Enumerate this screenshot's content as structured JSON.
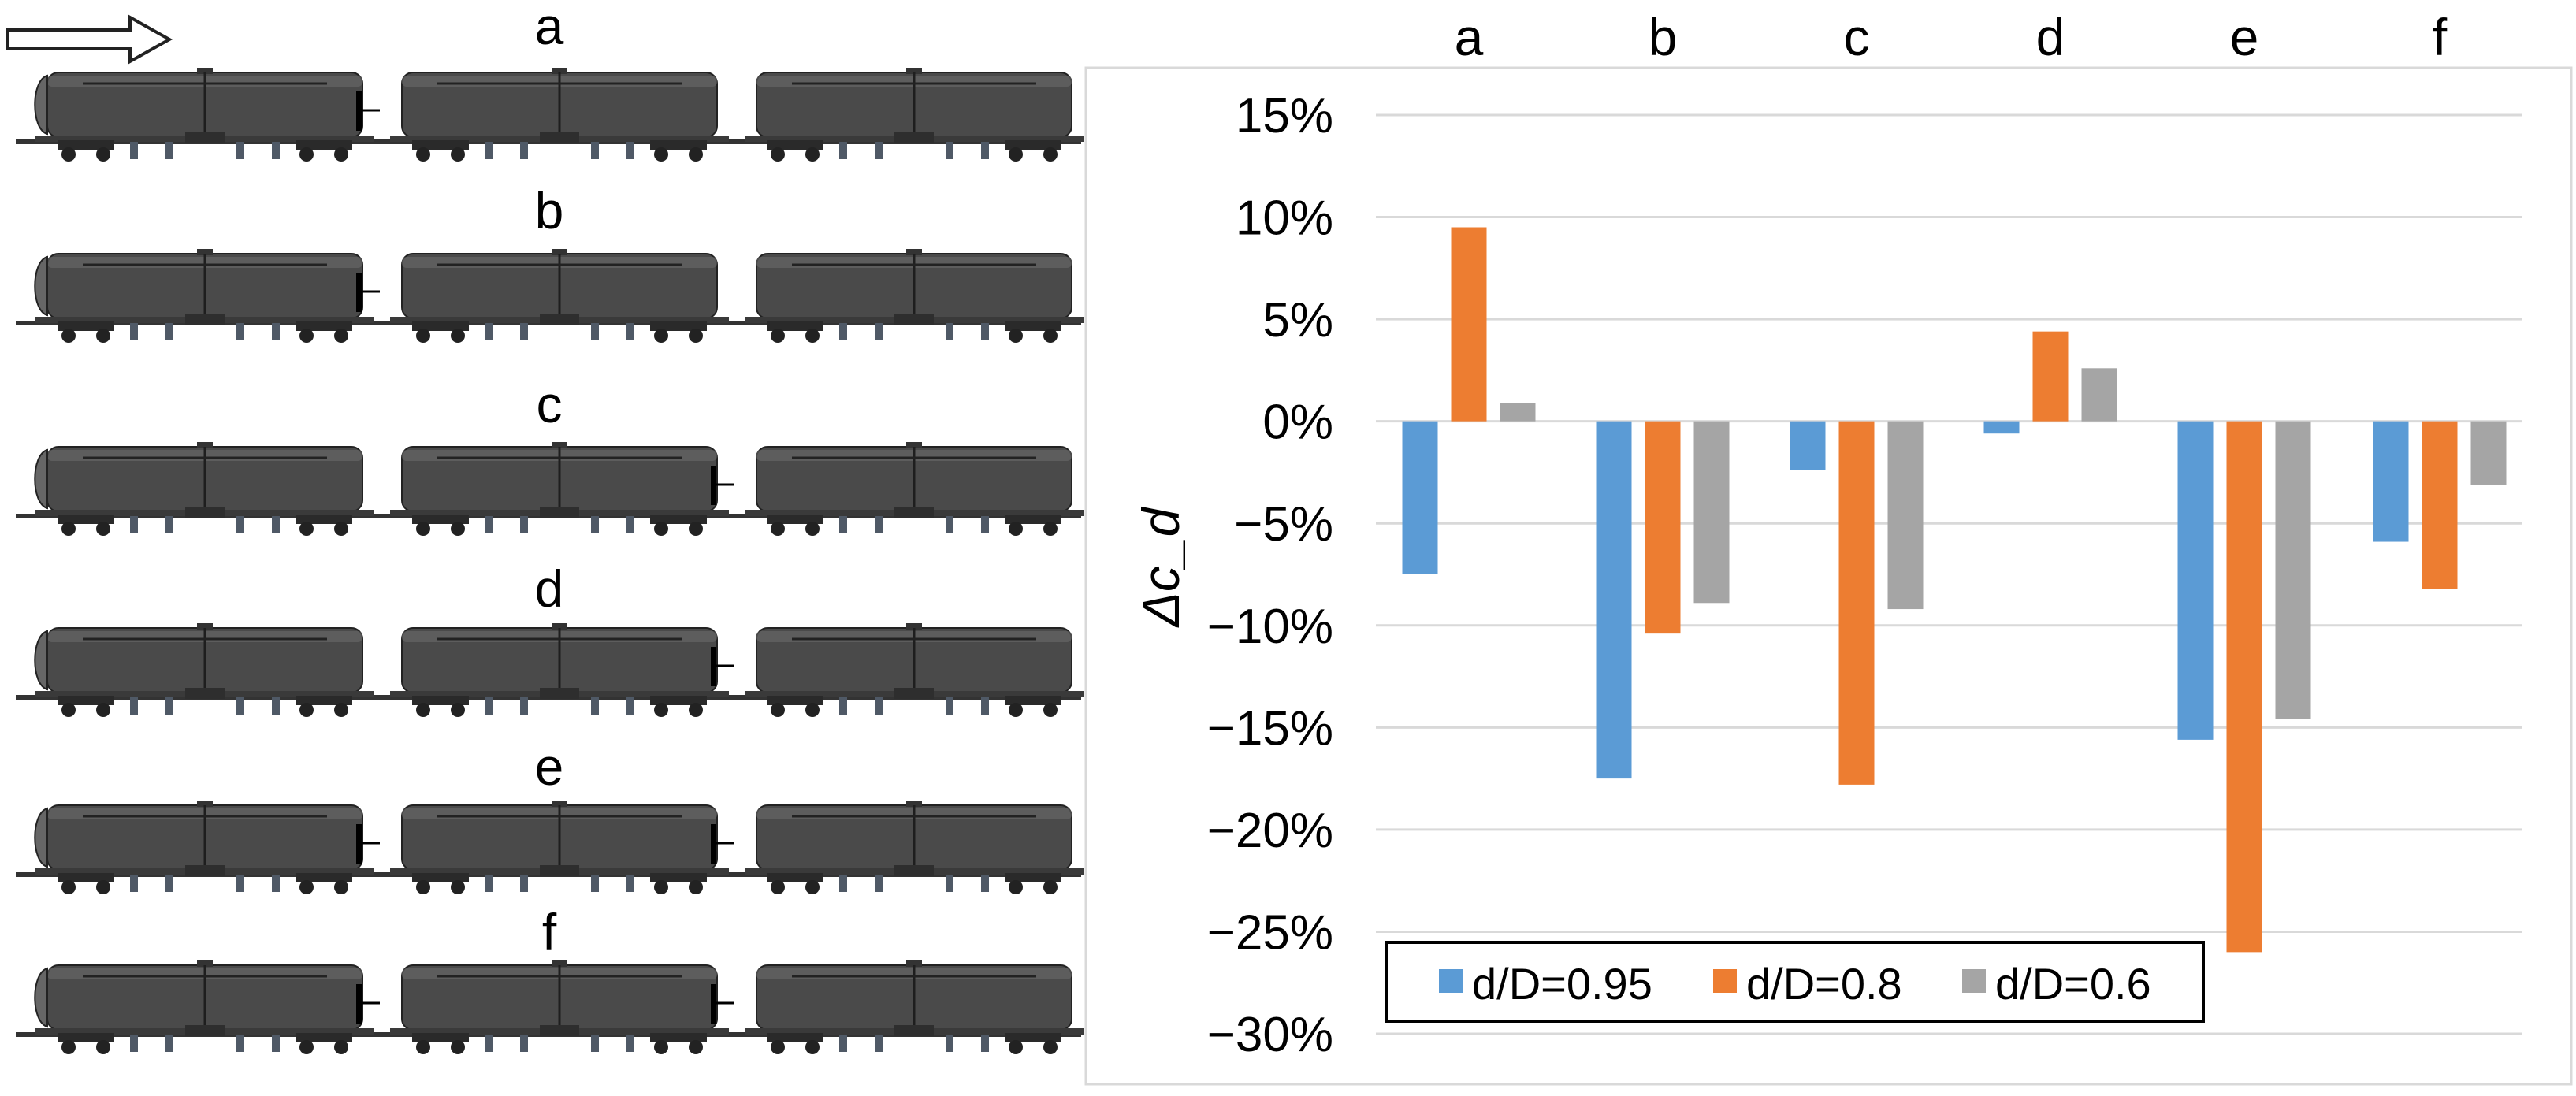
{
  "configurations": [
    {
      "label": "a",
      "plates": [
        1
      ]
    },
    {
      "label": "b",
      "plates": [
        1
      ]
    },
    {
      "label": "c",
      "plates": [
        2
      ]
    },
    {
      "label": "d",
      "plates": [
        2
      ]
    },
    {
      "label": "e",
      "plates": [
        1,
        2
      ]
    },
    {
      "label": "f",
      "plates": [
        1,
        2
      ]
    }
  ],
  "colors": {
    "d095": "#5B9BD5",
    "d08": "#ED7D31",
    "d06": "#A5A5A5",
    "car": "#4a4a4a",
    "grid": "#d9d9d9"
  },
  "chart_data": {
    "type": "bar",
    "title": "",
    "xlabel": "",
    "ylabel": "Δc_d",
    "categories": [
      "a",
      "b",
      "c",
      "d",
      "e",
      "f"
    ],
    "series": [
      {
        "name": "d/D=0.95",
        "values": [
          -7.5,
          -17.5,
          -2.4,
          -0.6,
          -15.6,
          -5.9
        ]
      },
      {
        "name": "d/D=0.8",
        "values": [
          9.5,
          -10.4,
          -17.8,
          4.4,
          -26.0,
          -8.2
        ]
      },
      {
        "name": "d/D=0.6",
        "values": [
          0.9,
          -8.9,
          -9.2,
          2.6,
          -14.6,
          -3.1
        ]
      }
    ],
    "ylim": [
      -30,
      15
    ],
    "yticks": [
      "15%",
      "10%",
      "5%",
      "0%",
      "−5%",
      "−10%",
      "−15%",
      "−20%",
      "−25%",
      "−30%"
    ],
    "grid": true,
    "legend": "bottom"
  }
}
